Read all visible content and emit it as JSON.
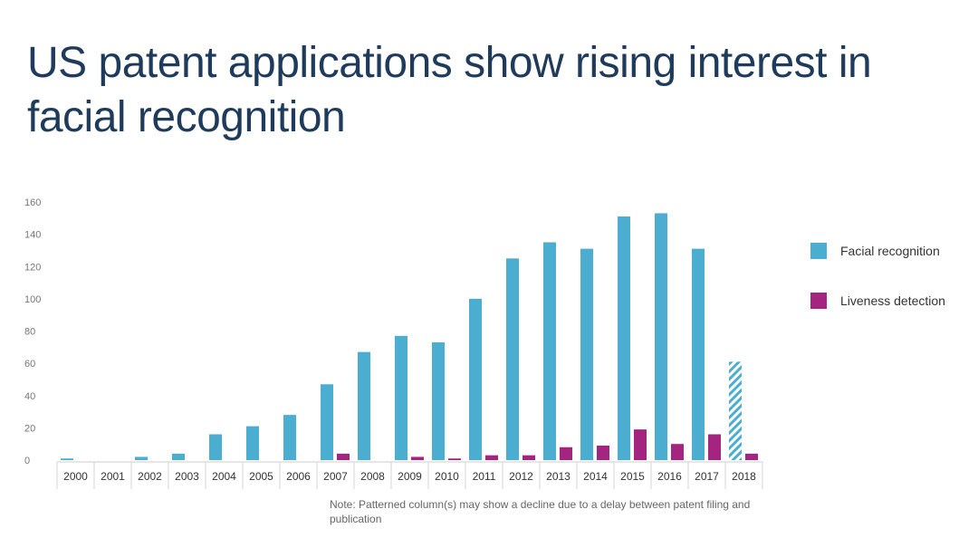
{
  "title": "US patent applications show rising interest in facial recognition",
  "note": "Note: Patterned column(s) may show a decline due to a delay between patent filing and publication",
  "chart_data": {
    "type": "bar",
    "title": "US patent applications show rising interest in facial recognition",
    "xlabel": "",
    "ylabel": "",
    "ylim": [
      0,
      160
    ],
    "yticks": [
      0,
      20,
      40,
      60,
      80,
      100,
      120,
      140,
      160
    ],
    "grid": false,
    "legend_position": "right",
    "categories": [
      "2000",
      "2001",
      "2002",
      "2003",
      "2004",
      "2005",
      "2006",
      "2007",
      "2008",
      "2009",
      "2010",
      "2011",
      "2012",
      "2013",
      "2014",
      "2015",
      "2016",
      "2017",
      "2018"
    ],
    "patterned_categories": [
      "2018"
    ],
    "series": [
      {
        "name": "Facial recognition",
        "color": "#4badd0",
        "values": [
          1,
          0,
          2,
          4,
          16,
          21,
          28,
          47,
          67,
          77,
          73,
          100,
          125,
          135,
          131,
          151,
          153,
          131,
          61
        ]
      },
      {
        "name": "Liveness detection",
        "color": "#a4257f",
        "values": [
          0,
          0,
          0,
          0,
          0,
          0,
          0,
          4,
          0,
          2,
          1,
          3,
          3,
          8,
          9,
          19,
          10,
          16,
          4
        ]
      }
    ]
  }
}
